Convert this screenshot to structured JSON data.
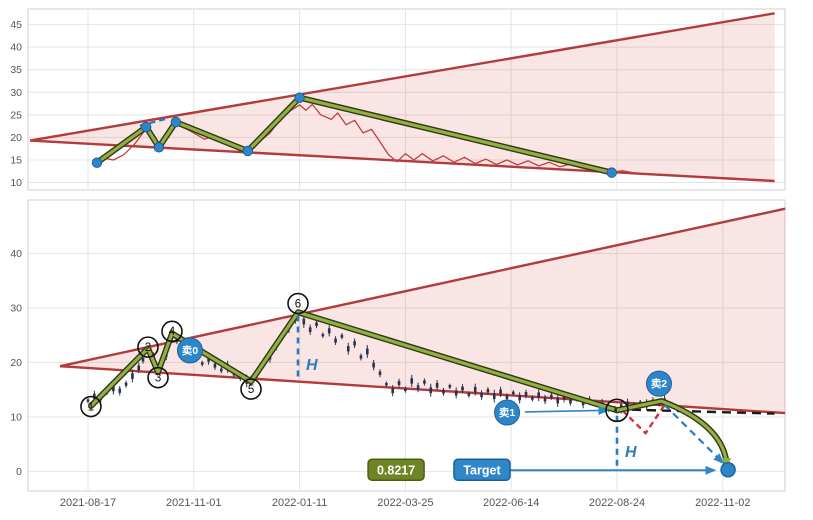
{
  "colors": {
    "trend_red": "#b23b3b",
    "wedge_fill": "rgba(214,96,87,0.16)",
    "price_red": "#c24040",
    "candle_navy": "#26324e",
    "zigzag_green": "#94ae45",
    "zigzag_outline": "#2e3a12",
    "annotation_blue": "#2e86c9",
    "dashed_blue": "#2b7bbf",
    "label_green_bg": "#6f8425",
    "label_green_border": "#4d5d13",
    "label_blue_bg": "#2f87ca",
    "label_blue_border": "#1c5f92",
    "red_dash": "#cc3636",
    "black_dash": "#1a1a1a",
    "axis_text": "#555555",
    "grid": "#e4e4e4",
    "panel_border": "#cfcfcf"
  },
  "x_axis": {
    "labels": [
      "2021-08-17",
      "2021-11-01",
      "2022-01-11",
      "2022-03-25",
      "2022-06-14",
      "2022-08-24",
      "2022-11-02"
    ]
  },
  "chart_data": [
    {
      "type": "line",
      "panel": "overview",
      "xlim": [
        -0.567,
        6.588
      ],
      "ylim": [
        8.35,
        48.45
      ],
      "yticks": [
        10,
        15,
        20,
        25,
        30,
        35,
        40,
        45
      ],
      "trend_upper": [
        [
          -0.548,
          19.3
        ],
        [
          6.49,
          47.5
        ]
      ],
      "trend_lower": [
        [
          -0.548,
          19.3
        ],
        [
          6.49,
          10.35
        ]
      ],
      "price": [
        [
          0.08,
          14.5
        ],
        [
          0.16,
          15.4
        ],
        [
          0.24,
          15.0
        ],
        [
          0.34,
          16.2
        ],
        [
          0.44,
          18.5
        ],
        [
          0.52,
          21.0
        ],
        [
          0.57,
          22.3
        ],
        [
          0.62,
          20.4
        ],
        [
          0.67,
          17.9
        ],
        [
          0.73,
          20.0
        ],
        [
          0.79,
          22.5
        ],
        [
          0.83,
          23.5
        ],
        [
          0.92,
          22.0
        ],
        [
          1.0,
          21.0
        ],
        [
          1.1,
          19.6
        ],
        [
          1.2,
          20.4
        ],
        [
          1.3,
          18.9
        ],
        [
          1.4,
          17.8
        ],
        [
          1.51,
          17.1
        ],
        [
          1.62,
          19.0
        ],
        [
          1.72,
          21.0
        ],
        [
          1.82,
          24.0
        ],
        [
          1.92,
          26.0
        ],
        [
          2.0,
          27.2
        ],
        [
          2.06,
          26.0
        ],
        [
          2.12,
          27.3
        ],
        [
          2.2,
          25.0
        ],
        [
          2.3,
          24.0
        ],
        [
          2.36,
          25.4
        ],
        [
          2.44,
          22.8
        ],
        [
          2.52,
          23.8
        ],
        [
          2.6,
          21.0
        ],
        [
          2.68,
          21.8
        ],
        [
          2.76,
          19.0
        ],
        [
          2.84,
          16.2
        ],
        [
          2.92,
          14.6
        ],
        [
          3.0,
          16.4
        ],
        [
          3.08,
          15.0
        ],
        [
          3.16,
          16.4
        ],
        [
          3.26,
          14.8
        ],
        [
          3.36,
          15.9
        ],
        [
          3.46,
          14.5
        ],
        [
          3.56,
          15.6
        ],
        [
          3.66,
          14.2
        ],
        [
          3.76,
          15.2
        ],
        [
          3.86,
          14.0
        ],
        [
          3.96,
          15.0
        ],
        [
          4.06,
          13.9
        ],
        [
          4.16,
          14.8
        ],
        [
          4.26,
          13.7
        ],
        [
          4.36,
          14.5
        ],
        [
          4.46,
          13.5
        ],
        [
          4.56,
          14.1
        ],
        [
          4.66,
          13.3
        ],
        [
          4.76,
          12.9
        ],
        [
          4.86,
          12.6
        ],
        [
          4.95,
          12.3
        ],
        [
          5.05,
          12.6
        ],
        [
          5.15,
          12.2
        ]
      ],
      "zigzag": [
        [
          0.085,
          14.4
        ],
        [
          0.55,
          22.3
        ],
        [
          0.67,
          17.8
        ],
        [
          0.83,
          23.4
        ],
        [
          1.51,
          17.0
        ],
        [
          2.0,
          28.8
        ],
        [
          4.95,
          12.2
        ]
      ],
      "pivot_dots": [
        [
          0.085,
          14.4
        ],
        [
          0.55,
          22.3
        ],
        [
          0.67,
          17.8
        ],
        [
          0.83,
          23.4
        ],
        [
          1.51,
          17.0
        ],
        [
          2.0,
          28.8
        ],
        [
          4.95,
          12.2
        ]
      ],
      "blue_dash": [
        [
          0.49,
          22.6
        ],
        [
          0.75,
          24.2
        ]
      ]
    },
    {
      "type": "candlestick",
      "panel": "main",
      "xlim": [
        -0.567,
        6.588
      ],
      "ylim": [
        -3.6,
        49.8
      ],
      "yticks": [
        0,
        10,
        20,
        30,
        40
      ],
      "trend_upper": [
        [
          -0.265,
          19.3
        ],
        [
          6.59,
          48.2
        ]
      ],
      "trend_lower": [
        [
          -0.265,
          19.3
        ],
        [
          6.59,
          10.7
        ]
      ],
      "candles": [
        [
          0.0,
          13.0
        ],
        [
          0.06,
          13.8
        ],
        [
          0.12,
          13.4
        ],
        [
          0.18,
          14.6
        ],
        [
          0.24,
          15.2
        ],
        [
          0.3,
          14.8
        ],
        [
          0.36,
          16.0
        ],
        [
          0.42,
          17.5
        ],
        [
          0.48,
          19.0
        ],
        [
          0.52,
          20.5
        ],
        [
          0.57,
          22.4
        ],
        [
          0.62,
          20.8
        ],
        [
          0.66,
          18.4
        ],
        [
          0.7,
          19.6
        ],
        [
          0.74,
          21.5
        ],
        [
          0.79,
          25.2
        ],
        [
          0.84,
          24.0
        ],
        [
          0.9,
          22.5
        ],
        [
          0.96,
          21.5
        ],
        [
          1.02,
          20.8
        ],
        [
          1.08,
          19.8
        ],
        [
          1.14,
          20.6
        ],
        [
          1.2,
          19.4
        ],
        [
          1.26,
          18.6
        ],
        [
          1.32,
          19.2
        ],
        [
          1.38,
          18.0
        ],
        [
          1.44,
          17.2
        ],
        [
          1.5,
          16.6
        ],
        [
          1.54,
          16.6
        ],
        [
          1.6,
          18.0
        ],
        [
          1.66,
          19.5
        ],
        [
          1.72,
          21.0
        ],
        [
          1.78,
          23.0
        ],
        [
          1.84,
          25.0
        ],
        [
          1.9,
          26.5
        ],
        [
          1.96,
          28.0
        ],
        [
          1.99,
          29.0
        ],
        [
          2.04,
          27.5
        ],
        [
          2.1,
          26.0
        ],
        [
          2.16,
          27.0
        ],
        [
          2.22,
          25.0
        ],
        [
          2.28,
          25.8
        ],
        [
          2.34,
          24.0
        ],
        [
          2.4,
          24.8
        ],
        [
          2.46,
          22.5
        ],
        [
          2.52,
          23.5
        ],
        [
          2.58,
          21.0
        ],
        [
          2.64,
          22.0
        ],
        [
          2.7,
          19.5
        ],
        [
          2.76,
          18.0
        ],
        [
          2.82,
          16.0
        ],
        [
          2.88,
          14.8
        ],
        [
          2.94,
          16.2
        ],
        [
          3.0,
          15.0
        ],
        [
          3.06,
          16.6
        ],
        [
          3.12,
          15.4
        ],
        [
          3.18,
          16.4
        ],
        [
          3.24,
          14.9
        ],
        [
          3.3,
          15.8
        ],
        [
          3.36,
          14.6
        ],
        [
          3.42,
          15.6
        ],
        [
          3.48,
          14.4
        ],
        [
          3.54,
          15.2
        ],
        [
          3.6,
          14.1
        ],
        [
          3.66,
          15.0
        ],
        [
          3.72,
          14.0
        ],
        [
          3.78,
          14.8
        ],
        [
          3.84,
          13.8
        ],
        [
          3.9,
          14.6
        ],
        [
          3.96,
          13.6
        ],
        [
          4.02,
          14.4
        ],
        [
          4.08,
          13.5
        ],
        [
          4.14,
          14.2
        ],
        [
          4.2,
          13.4
        ],
        [
          4.26,
          14.0
        ],
        [
          4.32,
          13.2
        ],
        [
          4.38,
          13.8
        ],
        [
          4.44,
          13.0
        ],
        [
          4.5,
          13.6
        ],
        [
          4.56,
          12.8
        ],
        [
          4.62,
          13.3
        ],
        [
          4.68,
          12.6
        ],
        [
          4.74,
          13.0
        ],
        [
          4.8,
          12.4
        ],
        [
          4.86,
          12.2
        ],
        [
          4.92,
          11.8
        ],
        [
          4.98,
          11.4
        ],
        [
          5.04,
          11.8
        ],
        [
          5.1,
          12.4
        ],
        [
          5.16,
          12.0
        ],
        [
          5.22,
          12.6
        ],
        [
          5.28,
          12.2
        ],
        [
          5.34,
          12.8
        ],
        [
          5.4,
          12.5
        ],
        [
          5.45,
          12.9
        ]
      ],
      "zigzag": [
        [
          0.028,
          12.0
        ],
        [
          0.567,
          22.6
        ],
        [
          0.662,
          18.2
        ],
        [
          0.794,
          25.3
        ],
        [
          1.541,
          16.5
        ],
        [
          1.985,
          29.2
        ],
        [
          5.0,
          11.2
        ]
      ],
      "green_tail": {
        "from": [
          5.0,
          11.2
        ],
        "mid": [
          5.42,
          12.9
        ],
        "ctrl": [
          6.02,
          8.5
        ],
        "to": [
          6.04,
          0.8
        ]
      },
      "blue_dash_tail": [
        [
          5.45,
          12.2
        ],
        [
          6.0,
          1.6
        ]
      ],
      "red_dash_v": [
        [
          5.05,
          11.2
        ],
        [
          5.27,
          7.0
        ],
        [
          5.46,
          12.5
        ]
      ],
      "black_dash": [
        [
          5.0,
          11.4
        ],
        [
          6.49,
          10.6
        ]
      ],
      "h_markers": [
        {
          "x": 1.985,
          "v1": 28.6,
          "v2": 17.0,
          "label": "H",
          "label_v": 18.6
        },
        {
          "x": 5.0,
          "v1": 10.2,
          "v2": 0.8,
          "label": "H",
          "label_v": 2.6
        }
      ],
      "number_circles": [
        {
          "label": "1",
          "t": 0.028,
          "v": 11.9
        },
        {
          "label": "2",
          "t": 0.567,
          "v": 22.8
        },
        {
          "label": "3",
          "t": 0.662,
          "v": 17.2
        },
        {
          "label": "4",
          "t": 0.794,
          "v": 25.7
        },
        {
          "label": "5",
          "t": 1.541,
          "v": 15.1
        },
        {
          "label": "6",
          "t": 1.985,
          "v": 30.8
        },
        {
          "label": "",
          "t": 5.0,
          "v": 11.2
        }
      ],
      "sell_markers": [
        {
          "label": "卖0",
          "t": 0.964,
          "v": 22.2
        },
        {
          "label": "卖1",
          "t": 3.961,
          "v": 10.8
        },
        {
          "label": "卖2",
          "t": 5.397,
          "v": 16.1
        }
      ],
      "sell1_arrow": {
        "from": [
          4.13,
          10.9
        ],
        "to": [
          4.91,
          11.2
        ]
      },
      "price_label": {
        "text": "0.8217",
        "t": 2.912,
        "v": 0.2
      },
      "target_label": {
        "text": "Target",
        "t": 3.724,
        "v": 0.2
      },
      "target_arrow": {
        "from": [
          3.99,
          0.2
        ],
        "to": [
          5.92,
          0.2
        ]
      },
      "target_dot": {
        "t": 6.05,
        "v": 0.3
      }
    }
  ]
}
